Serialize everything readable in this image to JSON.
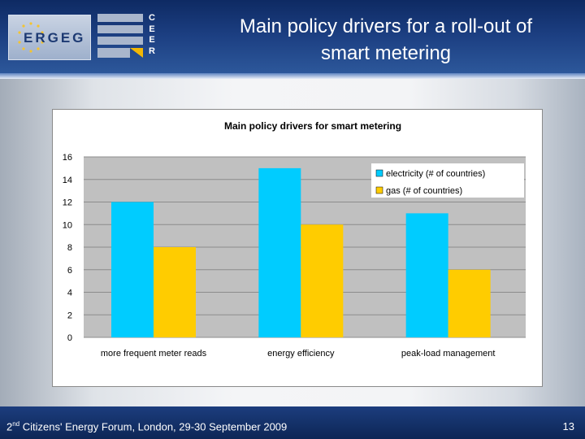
{
  "slide": {
    "title_line1": "Main policy drivers for a roll-out of",
    "title_line2": "smart metering",
    "logo_ergeg_text": "ERGEG",
    "logo_ceer_letters": [
      "C",
      "E",
      "E",
      "R"
    ],
    "footer_ordinal": "2",
    "footer_ordinal_suffix": "nd",
    "footer_rest": " Citizens' Energy Forum, London, 29-30 September 2009",
    "page_number": "13"
  },
  "colors": {
    "electricity": "#00ccff",
    "gas": "#ffcc00",
    "plot_background": "#c0c0c0",
    "header": "#1c3f82"
  },
  "chart_data": {
    "type": "bar",
    "title": "Main policy drivers for smart metering",
    "xlabel": "",
    "ylabel": "",
    "categories": [
      "more frequent meter reads",
      "energy efficiency",
      "peak-load management"
    ],
    "series": [
      {
        "name": "electricity (# of countries)",
        "values": [
          12,
          15,
          11
        ]
      },
      {
        "name": "gas (# of countries)",
        "values": [
          8,
          10,
          6
        ]
      }
    ],
    "ylim": [
      0,
      16
    ],
    "yticks": [
      0,
      2,
      4,
      6,
      8,
      10,
      12,
      14,
      16
    ],
    "grid": true,
    "legend": "top-right"
  }
}
